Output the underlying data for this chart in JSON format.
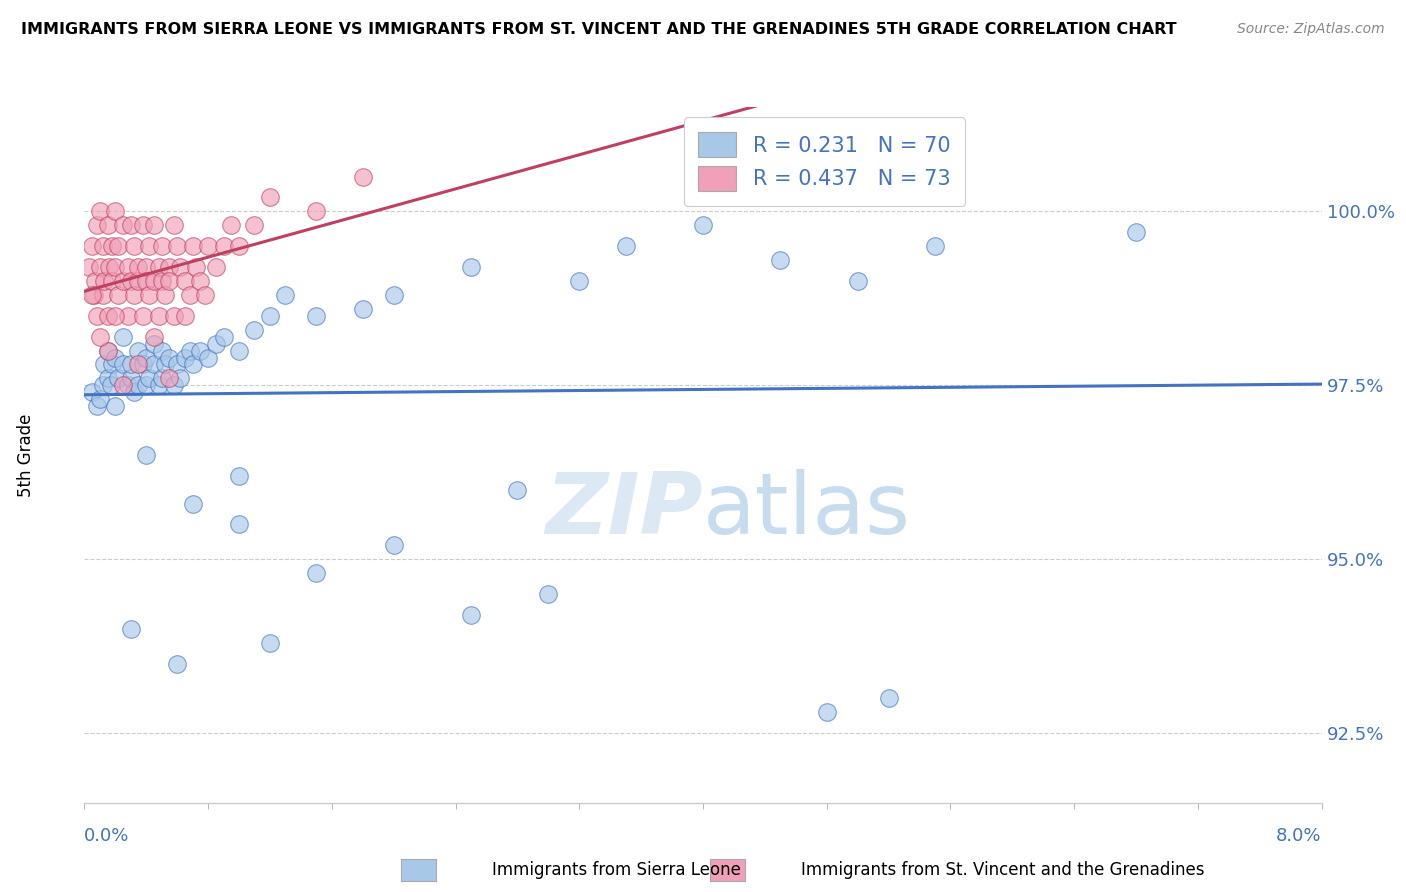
{
  "title": "IMMIGRANTS FROM SIERRA LEONE VS IMMIGRANTS FROM ST. VINCENT AND THE GRENADINES 5TH GRADE CORRELATION CHART",
  "source": "Source: ZipAtlas.com",
  "ylabel": "5th Grade",
  "yticks": [
    92.5,
    95.0,
    97.5,
    100.0
  ],
  "ytick_labels": [
    "92.5%",
    "95.0%",
    "97.5%",
    "100.0%"
  ],
  "xlim": [
    0.0,
    8.0
  ],
  "ylim": [
    91.5,
    101.5
  ],
  "blue_color": "#A8C8E8",
  "pink_color": "#F0A0B8",
  "blue_line_color": "#4472C4",
  "pink_line_color": "#C04060",
  "blue_R": 0.231,
  "blue_N": 70,
  "pink_R": 0.437,
  "pink_N": 73,
  "blue_legend_label": "Immigrants from Sierra Leone",
  "pink_legend_label": "Immigrants from St. Vincent and the Grenadines",
  "blue_scatter_x": [
    0.05,
    0.08,
    0.1,
    0.12,
    0.13,
    0.15,
    0.15,
    0.17,
    0.18,
    0.2,
    0.2,
    0.22,
    0.25,
    0.25,
    0.28,
    0.3,
    0.3,
    0.32,
    0.35,
    0.35,
    0.38,
    0.4,
    0.4,
    0.42,
    0.45,
    0.45,
    0.48,
    0.5,
    0.5,
    0.52,
    0.55,
    0.58,
    0.6,
    0.62,
    0.65,
    0.68,
    0.7,
    0.75,
    0.8,
    0.85,
    0.9,
    1.0,
    1.1,
    1.2,
    1.3,
    1.5,
    1.8,
    2.0,
    2.5,
    3.2,
    3.5,
    4.0,
    4.5,
    5.0,
    5.5,
    6.8,
    1.0,
    1.5,
    2.0,
    2.8,
    3.0,
    0.3,
    0.6,
    1.2,
    2.5,
    5.2,
    4.8,
    0.4,
    0.7,
    1.0
  ],
  "blue_scatter_y": [
    97.4,
    97.2,
    97.3,
    97.5,
    97.8,
    97.6,
    98.0,
    97.5,
    97.8,
    97.2,
    97.9,
    97.6,
    97.8,
    98.2,
    97.5,
    97.6,
    97.8,
    97.4,
    97.5,
    98.0,
    97.8,
    97.5,
    97.9,
    97.6,
    97.8,
    98.1,
    97.5,
    97.6,
    98.0,
    97.8,
    97.9,
    97.5,
    97.8,
    97.6,
    97.9,
    98.0,
    97.8,
    98.0,
    97.9,
    98.1,
    98.2,
    98.0,
    98.3,
    98.5,
    98.8,
    98.5,
    98.6,
    98.8,
    99.2,
    99.0,
    99.5,
    99.8,
    99.3,
    99.0,
    99.5,
    99.7,
    95.5,
    94.8,
    95.2,
    96.0,
    94.5,
    94.0,
    93.5,
    93.8,
    94.2,
    93.0,
    92.8,
    96.5,
    95.8,
    96.2
  ],
  "pink_scatter_x": [
    0.03,
    0.05,
    0.06,
    0.07,
    0.08,
    0.08,
    0.1,
    0.1,
    0.12,
    0.12,
    0.13,
    0.15,
    0.15,
    0.16,
    0.18,
    0.18,
    0.2,
    0.2,
    0.22,
    0.22,
    0.25,
    0.25,
    0.28,
    0.28,
    0.3,
    0.3,
    0.32,
    0.32,
    0.35,
    0.35,
    0.38,
    0.38,
    0.4,
    0.4,
    0.42,
    0.42,
    0.45,
    0.45,
    0.48,
    0.48,
    0.5,
    0.5,
    0.52,
    0.55,
    0.55,
    0.58,
    0.58,
    0.6,
    0.62,
    0.65,
    0.68,
    0.7,
    0.72,
    0.75,
    0.78,
    0.8,
    0.85,
    0.9,
    0.95,
    1.0,
    1.1,
    1.2,
    1.5,
    1.8,
    0.15,
    0.25,
    0.35,
    0.45,
    0.55,
    0.65,
    0.05,
    0.1,
    0.2
  ],
  "pink_scatter_y": [
    99.2,
    99.5,
    98.8,
    99.0,
    98.5,
    99.8,
    99.2,
    100.0,
    98.8,
    99.5,
    99.0,
    98.5,
    99.8,
    99.2,
    99.0,
    99.5,
    99.2,
    100.0,
    98.8,
    99.5,
    99.0,
    99.8,
    98.5,
    99.2,
    99.0,
    99.8,
    98.8,
    99.5,
    99.0,
    99.2,
    98.5,
    99.8,
    99.2,
    99.0,
    98.8,
    99.5,
    99.0,
    99.8,
    99.2,
    98.5,
    99.5,
    99.0,
    98.8,
    99.2,
    99.0,
    98.5,
    99.8,
    99.5,
    99.2,
    99.0,
    98.8,
    99.5,
    99.2,
    99.0,
    98.8,
    99.5,
    99.2,
    99.5,
    99.8,
    99.5,
    99.8,
    100.2,
    100.0,
    100.5,
    98.0,
    97.5,
    97.8,
    98.2,
    97.6,
    98.5,
    98.8,
    98.2,
    98.5
  ]
}
